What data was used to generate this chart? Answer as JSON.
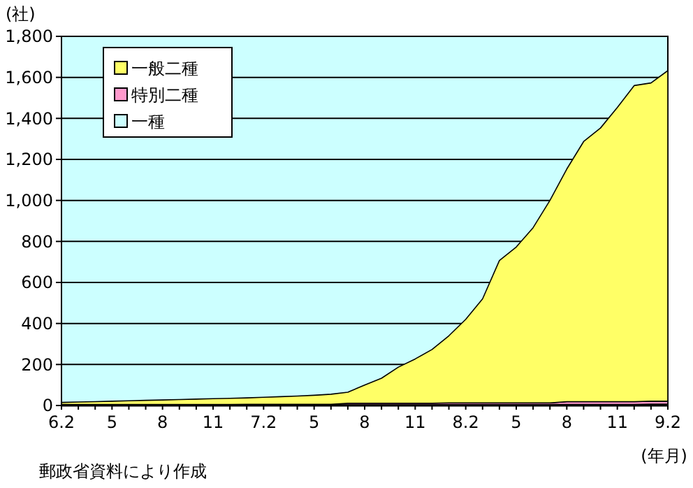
{
  "chart_data": {
    "type": "area",
    "stacked": true,
    "ylabel": "(社)",
    "xlabel": "(年月)",
    "annotations": [
      "郵政省資料により作成"
    ],
    "categories": [
      "6.2",
      null,
      null,
      "5",
      null,
      null,
      "8",
      null,
      null,
      "11",
      null,
      null,
      "7.2",
      null,
      null,
      "5",
      null,
      null,
      "8",
      null,
      null,
      "11",
      null,
      null,
      "8.2",
      null,
      null,
      "5",
      null,
      null,
      "8",
      null,
      null,
      "11",
      null,
      null,
      "9.2"
    ],
    "ylim": [
      0,
      1800
    ],
    "yticks": [
      0,
      200,
      400,
      600,
      800,
      {
        "value": 1000,
        "label": "1,000"
      },
      {
        "value": 1200,
        "label": "1,200"
      },
      {
        "value": 1400,
        "label": "1,400"
      },
      {
        "value": 1600,
        "label": "1,600"
      },
      {
        "value": 1800,
        "label": "1,800"
      }
    ],
    "grid": "y",
    "legend": "top left",
    "series": [
      {
        "name": "一種",
        "color": "#ccffff",
        "values": [
          2,
          2,
          2,
          2,
          2,
          2,
          2,
          2,
          2,
          2,
          2,
          3,
          3,
          3,
          3,
          3,
          3,
          3,
          3,
          3,
          3,
          3,
          3,
          5,
          5,
          5,
          5,
          5,
          5,
          5,
          5,
          5,
          5,
          5,
          5,
          7,
          7
        ]
      },
      {
        "name": "特別二種",
        "color": "#ff99cc",
        "values": [
          3,
          3,
          3,
          3,
          3,
          3,
          3,
          3,
          3,
          3,
          3,
          3,
          3,
          3,
          3,
          3,
          3,
          8,
          8,
          8,
          8,
          8,
          8,
          8,
          8,
          8,
          8,
          8,
          8,
          8,
          14,
          14,
          14,
          14,
          14,
          14,
          14
        ]
      },
      {
        "name": "一般二種",
        "color": "#ffff66",
        "values": [
          10,
          12,
          14,
          16,
          18,
          20,
          22,
          24,
          26,
          28,
          30,
          31,
          34,
          37,
          40,
          44,
          49,
          54,
          89,
          122,
          176,
          216,
          262,
          327,
          407,
          507,
          694,
          760,
          854,
          987,
          1134,
          1268,
          1334,
          1434,
          1541,
          1552,
          1612
        ]
      }
    ]
  }
}
